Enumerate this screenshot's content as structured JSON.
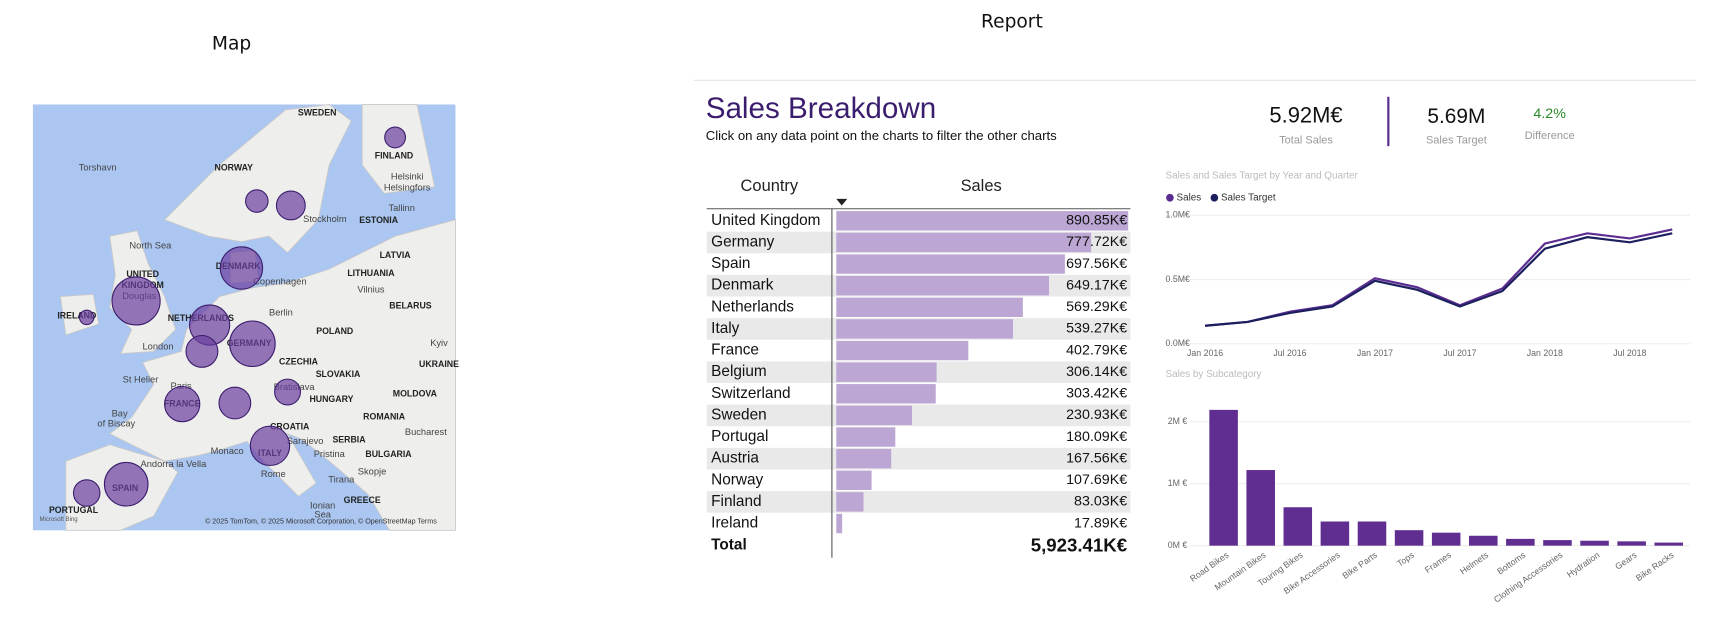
{
  "map": {
    "heading": "Map",
    "labels": [
      "SWEDEN",
      "NORWAY",
      "FINLAND",
      "Torshavn",
      "Helsinki",
      "Helsingfors",
      "Tallinn",
      "ESTONIA",
      "Stockholm",
      "North Sea",
      "DENMARK",
      "Copenhagen",
      "LATVIA",
      "LITHUANIA",
      "Vilnius",
      "BELARUS",
      "UNITED",
      "KINGDOM",
      "Douglas",
      "IRELAND",
      "NETHERLANDS",
      "Berlin",
      "POLAND",
      "London",
      "GERMANY",
      "Kyiv",
      "CZECHIA",
      "SLOVAKIA",
      "UKRAINE",
      "St Helier",
      "Paris",
      "Bratislava",
      "MOLDOVA",
      "HUNGARY",
      "FRANCE",
      "Bay",
      "of Biscay",
      "ROMANIA",
      "CROATIA",
      "SERBIA",
      "Bucharest",
      "Monaco",
      "Sarajevo",
      "BULGARIA",
      "Andorra la Vella",
      "ITALY",
      "Pristina",
      "SPAIN",
      "Skopje",
      "Rome",
      "Tirana",
      "PORTUGAL",
      "GREECE",
      "Ionian",
      "Sea"
    ],
    "attribution": "© 2025 TomTom, © 2025 Microsoft Corporation, © OpenStreetMap  Terms",
    "logo": "Microsoft Bing"
  },
  "report": {
    "heading": "Report",
    "title": "Sales Breakdown",
    "subtitle": "Click on any data point on the charts to filter the other charts",
    "kpis": [
      {
        "value": "5.92M€",
        "label": "Total Sales"
      },
      {
        "value": "5.69M",
        "label": "Sales Target"
      },
      {
        "value": "4.2%",
        "label": "Difference"
      }
    ],
    "table": {
      "columns": [
        "Country",
        "Sales"
      ],
      "categories": [
        "United Kingdom",
        "Germany",
        "Spain",
        "Denmark",
        "Netherlands",
        "Italy",
        "France",
        "Belgium",
        "Switzerland",
        "Sweden",
        "Portugal",
        "Austria",
        "Norway",
        "Finland",
        "Ireland"
      ],
      "values": [
        890.85,
        777.72,
        697.56,
        649.17,
        569.29,
        539.27,
        402.79,
        306.14,
        303.42,
        230.93,
        180.09,
        167.56,
        107.69,
        83.03,
        17.89
      ],
      "value_labels": [
        "890.85K€",
        "777.72K€",
        "697.56K€",
        "649.17K€",
        "569.29K€",
        "539.27K€",
        "402.79K€",
        "306.14K€",
        "303.42K€",
        "230.93K€",
        "180.09K€",
        "167.56K€",
        "107.69K€",
        "83.03K€",
        "17.89K€"
      ],
      "color": "#bba6d4",
      "total_label": "Total",
      "total_value_label": "5,923.41K€"
    },
    "line_chart": {
      "type": "line",
      "title": "Sales and Sales Target by Year and Quarter",
      "x": [
        "Jan 2016",
        null,
        "Jul 2016",
        null,
        "Jan 2017",
        null,
        "Jul 2017",
        null,
        "Jan 2018",
        null,
        "Jul 2018",
        null
      ],
      "series": [
        {
          "name": "Sales",
          "color": "#5c2d91",
          "values": [
            0.14,
            0.17,
            0.25,
            0.3,
            0.51,
            0.44,
            0.3,
            0.43,
            0.78,
            0.86,
            0.82,
            0.89
          ]
        },
        {
          "name": "Sales Target",
          "color": "#1b1f5e",
          "values": [
            0.14,
            0.17,
            0.24,
            0.29,
            0.49,
            0.42,
            0.29,
            0.41,
            0.74,
            0.83,
            0.79,
            0.86
          ]
        }
      ],
      "ylim": [
        0,
        1
      ],
      "yticks": [
        {
          "value": 0,
          "label": "0.0M€"
        },
        {
          "value": 0.5,
          "label": "0.5M€"
        },
        {
          "value": 1,
          "label": "1.0M€"
        }
      ],
      "grid": true
    },
    "bar_chart": {
      "type": "bar",
      "title": "Sales by Subcategory",
      "categories": [
        "Road Bikes",
        "Mountain Bikes",
        "Touring Bikes",
        "Bike Accessories",
        "Bike Parts",
        "Tops",
        "Frames",
        "Helmets",
        "Bottoms",
        "Clothing Accessories",
        "Hydration",
        "Gears",
        "Bike Racks"
      ],
      "values": [
        2.19,
        1.22,
        0.62,
        0.39,
        0.39,
        0.25,
        0.21,
        0.16,
        0.11,
        0.09,
        0.08,
        0.07,
        0.05
      ],
      "color": "#5f2e90",
      "ylim": [
        0,
        2.3
      ],
      "yticks": [
        {
          "value": 0,
          "label": "0M €"
        },
        {
          "value": 1,
          "label": "1M €"
        },
        {
          "value": 2,
          "label": "2M €"
        }
      ],
      "grid": true
    }
  }
}
